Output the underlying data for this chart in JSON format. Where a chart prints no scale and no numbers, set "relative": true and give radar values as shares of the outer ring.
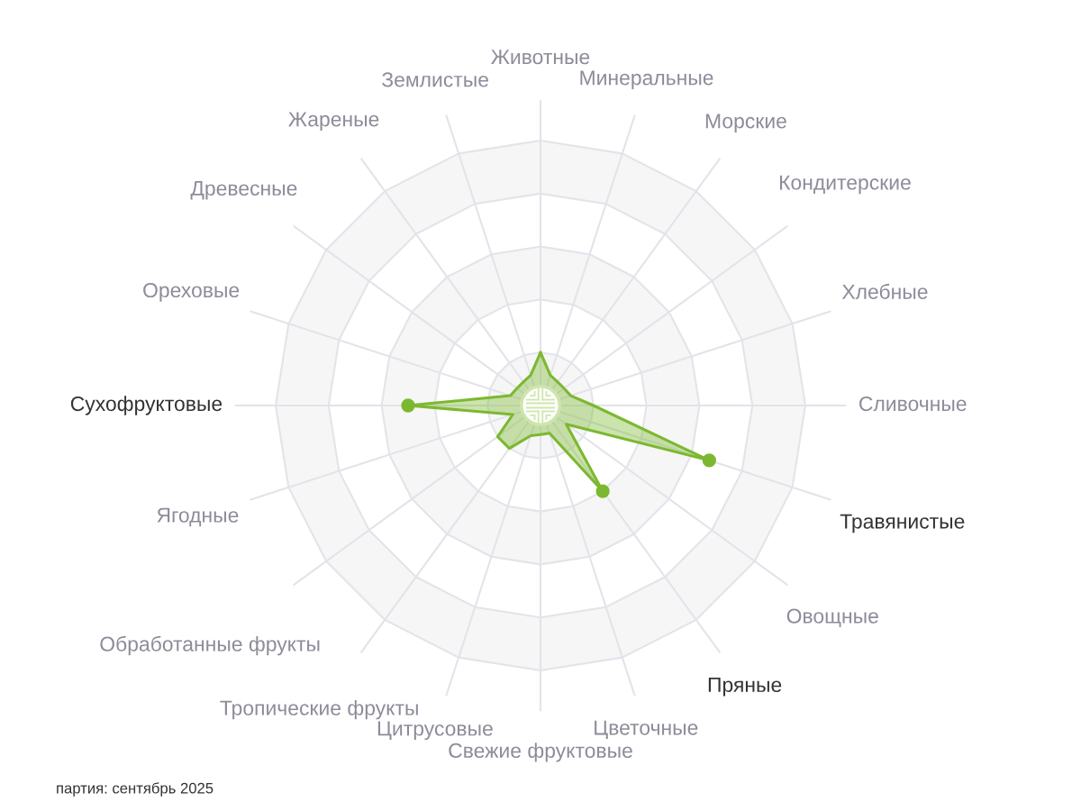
{
  "chart_data": {
    "type": "radar",
    "categories": [
      "Животные",
      "Минеральные",
      "Морские",
      "Кондитерские",
      "Хлебные",
      "Сливочные",
      "Травянистые",
      "Овощные",
      "Пряные",
      "Цветочные",
      "Свежие фруктовые",
      "Цитрусовые",
      "Тропические фрукты",
      "Обработанные фрукты",
      "Ягодные",
      "Сухофруктовые",
      "Ореховые",
      "Древесные",
      "Жареные",
      "Землистые"
    ],
    "series": [
      {
        "color": "#7cb82f",
        "values": [
          0.2,
          0.12,
          0.11,
          0.11,
          0.12,
          0.2,
          0.67,
          0.12,
          0.4,
          0.11,
          0.11,
          0.12,
          0.2,
          0.2,
          0.11,
          0.5,
          0.12,
          0.11,
          0.11,
          0.12
        ]
      }
    ],
    "relative": true,
    "marker": "circle",
    "grid": true,
    "annotations": [
      "партия: сентябрь 2025"
    ]
  }
}
